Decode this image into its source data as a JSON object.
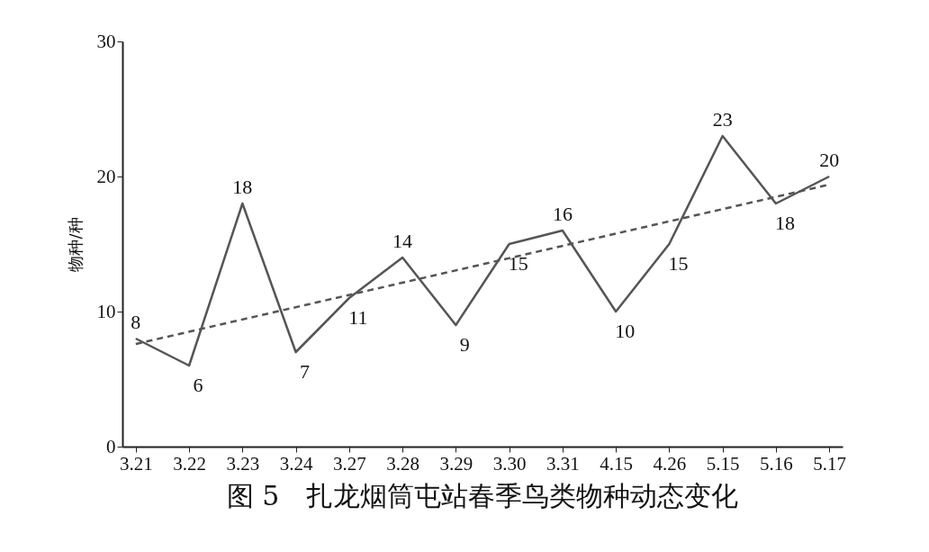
{
  "chart_data": {
    "type": "line",
    "title": "图 5　扎龙烟筒屯站春季鸟类物种动态变化",
    "ylabel": "物种/种",
    "categories": [
      "3.21",
      "3.22",
      "3.23",
      "3.24",
      "3.27",
      "3.28",
      "3.29",
      "3.30",
      "3.31",
      "4.15",
      "4.26",
      "5.15",
      "5.16",
      "5.17"
    ],
    "series": [
      {
        "color": "#555555",
        "values": [
          8,
          6,
          18,
          7,
          11,
          14,
          9,
          15,
          16,
          10,
          15,
          23,
          18,
          20
        ],
        "value_labels": [
          "8",
          "6",
          "18",
          "7",
          "11",
          "14",
          "9",
          "15",
          "16",
          "10",
          "15",
          "23",
          "18",
          "20"
        ]
      },
      {
        "type": "line",
        "line_style": "dashed",
        "color": "#555555",
        "x": [
          "3.21",
          "5.17"
        ],
        "values": [
          7.6,
          19.4
        ]
      }
    ],
    "ylim": [
      0,
      30
    ],
    "yticks": [
      0,
      10,
      20,
      30
    ],
    "grid": false,
    "marker": "none"
  }
}
